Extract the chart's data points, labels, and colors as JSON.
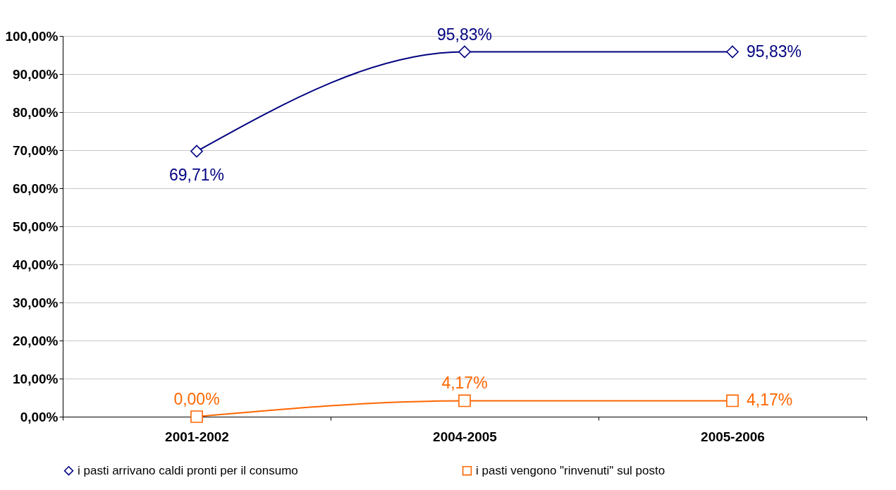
{
  "chart_data": {
    "type": "line",
    "categories": [
      "2001-2002",
      "2004-2005",
      "2005-2006"
    ],
    "series": [
      {
        "name": "i pasti arrivano caldi pronti per il consumo",
        "color": "#000080",
        "values": [
          69.71,
          95.83,
          95.83
        ],
        "value_labels": [
          "69,71%",
          "95,83%",
          "95,83%"
        ],
        "marker": "diamond"
      },
      {
        "name": "i pasti vengono \"rinvenuti\" sul posto",
        "color": "#ff6600",
        "values": [
          0,
          4.17,
          4.17
        ],
        "value_labels": [
          "0,00%",
          "4,17%",
          "4,17%"
        ],
        "marker": "square"
      }
    ],
    "ylim": [
      0,
      100
    ],
    "yticks": [
      {
        "value": 0,
        "label": "0,00%"
      },
      {
        "value": 10,
        "label": "10,00%"
      },
      {
        "value": 20,
        "label": "20,00%"
      },
      {
        "value": 30,
        "label": "30,00%"
      },
      {
        "value": 40,
        "label": "40,00%"
      },
      {
        "value": 50,
        "label": "50,00%"
      },
      {
        "value": 60,
        "label": "60,00%"
      },
      {
        "value": 70,
        "label": "70,00%"
      },
      {
        "value": 80,
        "label": "80,00%"
      },
      {
        "value": 90,
        "label": "90,00%"
      },
      {
        "value": 100,
        "label": "100,00%"
      }
    ],
    "grid": "y",
    "legend": "bottom",
    "line_style": "solid"
  }
}
